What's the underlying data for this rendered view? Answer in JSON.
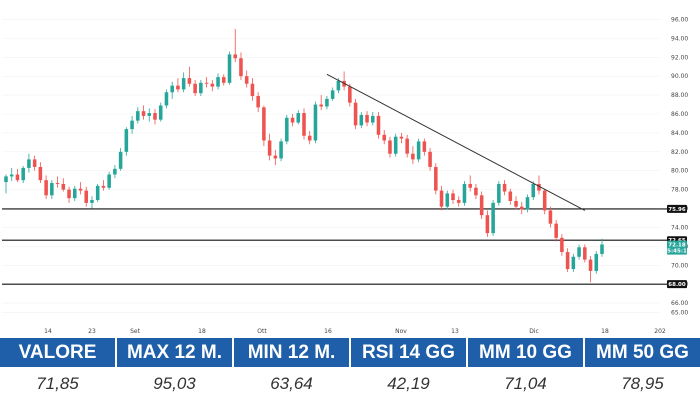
{
  "chart_data": {
    "type": "candlestick",
    "title": "",
    "xlabel": "",
    "ylabel": "",
    "ylim": [
      64,
      97
    ],
    "y_ticks": [
      "96.00",
      "94.00",
      "92.00",
      "90.00",
      "88.00",
      "86.00",
      "84.00",
      "82.00",
      "80.00",
      "78.00",
      "76.00",
      "74.00",
      "72.00",
      "70.00",
      "68.00",
      "66.00",
      "65.00"
    ],
    "x_ticks": [
      "14",
      "23",
      "Set",
      "18",
      "Ott",
      "16",
      "Nov",
      "13",
      "Dic",
      "18",
      "202"
    ],
    "horizontal_levels": [
      {
        "label": "75.96",
        "value": 75.96,
        "color": "#111111"
      },
      {
        "label": "72.65",
        "value": 72.65,
        "color": "#111111"
      },
      {
        "label": "68.00",
        "value": 68.0,
        "color": "#111111"
      }
    ],
    "price_badge": {
      "label": "72.18",
      "value": 72.18,
      "color": "#26a69a"
    },
    "price_badge_sub": "05:45:18",
    "trendline": {
      "from": {
        "x": 56,
        "y": 90.2
      },
      "to": {
        "x": 101,
        "y": 75.8
      }
    },
    "up_color": "#26a69a",
    "down_color": "#ef5350",
    "candles": [
      [
        78.8,
        79.6,
        77.6,
        79.4
      ],
      [
        79.4,
        80.3,
        78.9,
        79.6
      ],
      [
        79.6,
        80.2,
        78.8,
        79.0
      ],
      [
        79.0,
        80.5,
        78.7,
        80.3
      ],
      [
        80.3,
        81.8,
        79.8,
        81.2
      ],
      [
        81.2,
        81.6,
        80.0,
        80.4
      ],
      [
        80.4,
        80.9,
        78.7,
        79.0
      ],
      [
        79.0,
        79.5,
        77.0,
        77.4
      ],
      [
        77.4,
        79.0,
        77.0,
        78.7
      ],
      [
        78.7,
        79.4,
        78.2,
        78.6
      ],
      [
        78.6,
        79.2,
        77.8,
        78.0
      ],
      [
        78.0,
        78.3,
        76.6,
        77.1
      ],
      [
        77.1,
        78.4,
        76.8,
        78.1
      ],
      [
        78.1,
        78.8,
        77.5,
        77.9
      ],
      [
        77.9,
        78.3,
        76.2,
        76.6
      ],
      [
        76.6,
        77.3,
        76.0,
        76.9
      ],
      [
        76.9,
        78.6,
        76.7,
        78.4
      ],
      [
        78.4,
        79.0,
        77.9,
        78.2
      ],
      [
        78.2,
        79.9,
        78.0,
        79.6
      ],
      [
        79.6,
        80.6,
        79.2,
        80.2
      ],
      [
        80.2,
        82.4,
        80.0,
        82.0
      ],
      [
        82.0,
        84.6,
        81.6,
        84.4
      ],
      [
        84.4,
        85.8,
        83.9,
        85.3
      ],
      [
        85.3,
        86.7,
        85.0,
        86.3
      ],
      [
        86.3,
        86.9,
        85.4,
        85.8
      ],
      [
        85.8,
        86.6,
        85.2,
        86.1
      ],
      [
        86.1,
        86.5,
        84.9,
        85.4
      ],
      [
        85.4,
        87.2,
        85.2,
        86.9
      ],
      [
        86.9,
        88.6,
        86.6,
        88.3
      ],
      [
        88.3,
        89.4,
        87.6,
        89.0
      ],
      [
        89.0,
        89.8,
        88.3,
        88.6
      ],
      [
        88.6,
        90.4,
        88.3,
        89.8
      ],
      [
        89.8,
        91.0,
        88.9,
        89.2
      ],
      [
        89.2,
        89.6,
        87.9,
        88.2
      ],
      [
        88.2,
        89.6,
        87.9,
        89.3
      ],
      [
        89.3,
        89.9,
        88.8,
        89.2
      ],
      [
        89.2,
        89.6,
        88.4,
        88.9
      ],
      [
        88.9,
        90.3,
        88.6,
        89.9
      ],
      [
        89.9,
        90.2,
        89.0,
        89.3
      ],
      [
        89.3,
        92.6,
        89.1,
        92.3
      ],
      [
        92.3,
        95.0,
        91.5,
        91.9
      ],
      [
        91.9,
        92.5,
        89.6,
        90.0
      ],
      [
        90.0,
        90.6,
        88.8,
        89.2
      ],
      [
        89.2,
        89.8,
        87.4,
        87.9
      ],
      [
        87.9,
        88.3,
        86.2,
        86.7
      ],
      [
        86.7,
        86.9,
        82.6,
        83.2
      ],
      [
        83.2,
        83.9,
        81.1,
        81.6
      ],
      [
        81.6,
        82.2,
        80.6,
        81.3
      ],
      [
        81.3,
        83.4,
        81.0,
        83.1
      ],
      [
        83.1,
        85.9,
        82.8,
        85.6
      ],
      [
        85.6,
        86.0,
        84.7,
        85.1
      ],
      [
        85.1,
        86.4,
        84.9,
        86.1
      ],
      [
        86.1,
        86.6,
        83.3,
        83.7
      ],
      [
        83.7,
        84.2,
        82.8,
        83.2
      ],
      [
        83.2,
        87.3,
        82.9,
        87.0
      ],
      [
        87.0,
        88.0,
        86.4,
        86.8
      ],
      [
        86.8,
        87.9,
        86.5,
        87.6
      ],
      [
        87.6,
        88.8,
        87.4,
        88.5
      ],
      [
        88.5,
        89.8,
        88.2,
        89.5
      ],
      [
        89.5,
        90.5,
        88.5,
        88.9
      ],
      [
        88.9,
        89.2,
        86.8,
        87.2
      ],
      [
        87.2,
        87.6,
        84.4,
        84.8
      ],
      [
        84.8,
        86.2,
        84.5,
        85.9
      ],
      [
        85.9,
        86.3,
        84.7,
        85.1
      ],
      [
        85.1,
        86.2,
        84.8,
        85.8
      ],
      [
        85.8,
        86.2,
        83.4,
        83.8
      ],
      [
        83.8,
        84.3,
        82.8,
        83.2
      ],
      [
        83.2,
        83.6,
        81.4,
        81.8
      ],
      [
        81.8,
        83.9,
        81.5,
        83.6
      ],
      [
        83.6,
        84.0,
        82.9,
        83.4
      ],
      [
        83.4,
        83.8,
        81.4,
        81.8
      ],
      [
        81.8,
        82.6,
        80.7,
        81.2
      ],
      [
        81.2,
        83.4,
        80.9,
        83.1
      ],
      [
        83.1,
        83.4,
        81.6,
        82.0
      ],
      [
        82.0,
        82.4,
        80.0,
        80.4
      ],
      [
        80.4,
        80.8,
        77.5,
        77.9
      ],
      [
        77.9,
        78.4,
        75.8,
        76.2
      ],
      [
        76.2,
        77.9,
        75.9,
        77.6
      ],
      [
        77.6,
        78.0,
        76.5,
        76.9
      ],
      [
        76.9,
        77.3,
        76.2,
        76.6
      ],
      [
        76.6,
        78.9,
        76.3,
        78.6
      ],
      [
        78.6,
        79.5,
        77.8,
        78.2
      ],
      [
        78.2,
        78.6,
        77.0,
        77.4
      ],
      [
        77.4,
        77.8,
        74.9,
        75.3
      ],
      [
        75.3,
        75.8,
        73.0,
        73.4
      ],
      [
        73.4,
        76.9,
        73.1,
        76.6
      ],
      [
        76.6,
        78.9,
        76.3,
        78.6
      ],
      [
        78.6,
        79.0,
        77.4,
        77.8
      ],
      [
        77.8,
        78.1,
        76.4,
        76.8
      ],
      [
        76.8,
        77.3,
        75.9,
        76.2
      ],
      [
        76.2,
        76.7,
        75.4,
        75.9
      ],
      [
        75.9,
        77.5,
        75.6,
        77.2
      ],
      [
        77.2,
        78.9,
        76.9,
        78.6
      ],
      [
        78.6,
        79.5,
        77.5,
        77.9
      ],
      [
        77.9,
        78.1,
        75.4,
        75.8
      ],
      [
        75.8,
        76.2,
        74.0,
        74.4
      ],
      [
        74.4,
        74.8,
        72.5,
        72.9
      ],
      [
        72.9,
        73.3,
        71.0,
        71.4
      ],
      [
        71.4,
        71.8,
        69.3,
        69.6
      ],
      [
        69.6,
        71.2,
        69.3,
        70.9
      ],
      [
        70.9,
        72.2,
        70.6,
        71.9
      ],
      [
        71.9,
        72.2,
        70.3,
        70.6
      ],
      [
        70.6,
        71.0,
        68.2,
        69.4
      ],
      [
        69.4,
        71.5,
        69.1,
        71.2
      ],
      [
        71.2,
        72.8,
        70.9,
        72.2
      ]
    ]
  },
  "stats": {
    "headers": [
      "VALORE",
      "MAX 12 M.",
      "MIN 12 M.",
      "RSI 14 GG",
      "MM 10 GG",
      "MM 50 GG"
    ],
    "values": [
      "71,85",
      "95,03",
      "63,64",
      "42,19",
      "71,04",
      "78,95"
    ]
  },
  "colors": {
    "header_bg": "#1f5fa9",
    "header_text": "#ffffff",
    "value_text": "#333333"
  }
}
